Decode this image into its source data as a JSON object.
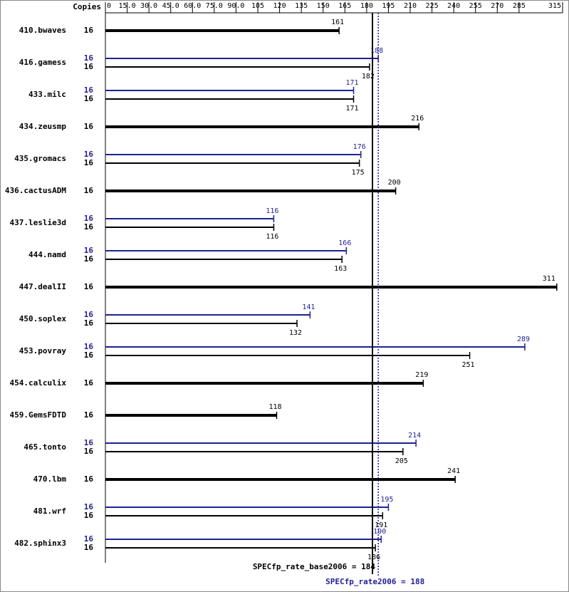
{
  "chart_data": {
    "type": "spec_bars",
    "copies_header": "Copies",
    "categories": [
      "410.bwaves",
      "416.gamess",
      "433.milc",
      "434.zeusmp",
      "435.gromacs",
      "436.cactusADM",
      "437.leslie3d",
      "444.namd",
      "447.dealII",
      "450.soplex",
      "453.povray",
      "454.calculix",
      "459.GemsFDTD",
      "465.tonto",
      "470.lbm",
      "481.wrf",
      "482.sphinx3"
    ],
    "base": {
      "color": "#000000",
      "copies": [
        16,
        16,
        16,
        16,
        16,
        16,
        16,
        16,
        16,
        16,
        16,
        16,
        16,
        16,
        16,
        16,
        16
      ],
      "values": [
        161,
        182,
        171,
        216,
        175,
        200,
        116,
        163,
        311,
        132,
        251,
        219,
        118,
        205,
        241,
        191,
        186
      ]
    },
    "peak": {
      "color": "#1f1f99",
      "copies": [
        null,
        16,
        16,
        null,
        16,
        null,
        16,
        16,
        null,
        16,
        16,
        null,
        null,
        16,
        null,
        16,
        16
      ],
      "values": [
        null,
        188,
        171,
        null,
        176,
        null,
        116,
        166,
        null,
        141,
        289,
        null,
        null,
        214,
        null,
        195,
        190
      ]
    },
    "base_line": {
      "value": 184,
      "label": "SPECfp_rate_base2006 = 184"
    },
    "peak_line": {
      "value": 188,
      "label": "SPECfp_rate2006 = 188"
    },
    "xlim": [
      0,
      315
    ],
    "xticks": [
      0,
      {
        "value": 15,
        "label": "15.0"
      },
      {
        "value": 30,
        "label": "30.0"
      },
      {
        "value": 45,
        "label": "45.0"
      },
      {
        "value": 60,
        "label": "60.0"
      },
      {
        "value": 75,
        "label": "75.0"
      },
      {
        "value": 90,
        "label": "90.0"
      },
      105,
      120,
      135,
      150,
      165,
      180,
      195,
      210,
      225,
      240,
      255,
      270,
      285,
      315
    ]
  }
}
